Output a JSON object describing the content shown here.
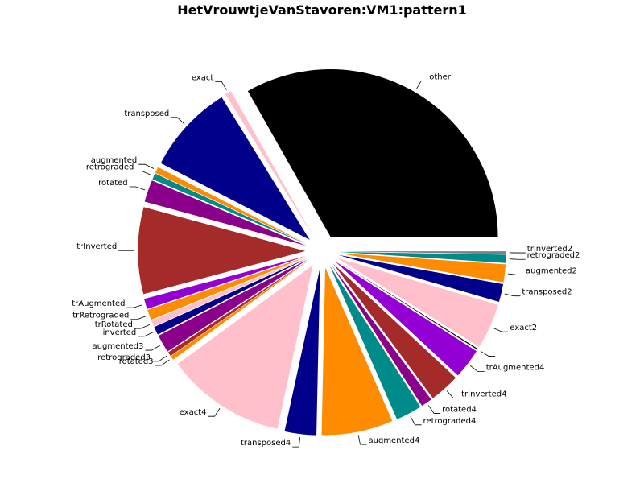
{
  "chart_data": {
    "type": "pie",
    "title": "HetVrouwtjeVanStavoren:VM1:pattern1",
    "slices": [
      {
        "label": "other",
        "value": 25.0,
        "color": "#000000"
      },
      {
        "label": "exact",
        "value": 0.45,
        "color": "#ffc0cb"
      },
      {
        "label": "transposed",
        "value": 6.5,
        "color": "#00008b"
      },
      {
        "label": "augmented",
        "value": 0.45,
        "color": "#ff8c00"
      },
      {
        "label": "retrograded",
        "value": 0.45,
        "color": "#008b8b"
      },
      {
        "label": "rotated",
        "value": 1.6,
        "color": "#8b008b"
      },
      {
        "label": "trInverted",
        "value": 6.3,
        "color": "#a52a2a"
      },
      {
        "label": "trAugmented",
        "value": 0.75,
        "color": "#9400d3"
      },
      {
        "label": "trRetrograded",
        "value": 0.75,
        "color": "#ff8c00"
      },
      {
        "label": "trRotated",
        "value": 0.45,
        "color": "#ffc0cb"
      },
      {
        "label": "inverted",
        "value": 0.6,
        "color": "#00008b"
      },
      {
        "label": "augmented3",
        "value": 1.3,
        "color": "#8b008b"
      },
      {
        "label": "retrograded3",
        "value": 0.3,
        "color": "#a52a2a"
      },
      {
        "label": "rotated3",
        "value": 0.3,
        "color": "#ff8c00"
      },
      {
        "label": "exact4",
        "value": 8.7,
        "color": "#ffc0cb"
      },
      {
        "label": "transposed4",
        "value": 2.3,
        "color": "#00008b"
      },
      {
        "label": "augmented4",
        "value": 5.2,
        "color": "#ff8c00"
      },
      {
        "label": "retrograded4",
        "value": 1.9,
        "color": "#008b8b"
      },
      {
        "label": "rotated4",
        "value": 0.8,
        "color": "#8b008b"
      },
      {
        "label": "trInverted4",
        "value": 2.2,
        "color": "#a52a2a"
      },
      {
        "label": "trAugmented4",
        "value": 2.2,
        "color": "#9400d3"
      },
      {
        "label": "",
        "value": 0.08,
        "color": "#000000"
      },
      {
        "label": "exact2",
        "value": 3.3,
        "color": "#ffc0cb"
      },
      {
        "label": "transposed2",
        "value": 1.3,
        "color": "#00008b"
      },
      {
        "label": "augmented2",
        "value": 1.3,
        "color": "#ff8c00"
      },
      {
        "label": "retrograded2",
        "value": 0.6,
        "color": "#008b8b"
      },
      {
        "label": "trInverted2",
        "value": 0.2,
        "color": "#808080"
      }
    ]
  }
}
